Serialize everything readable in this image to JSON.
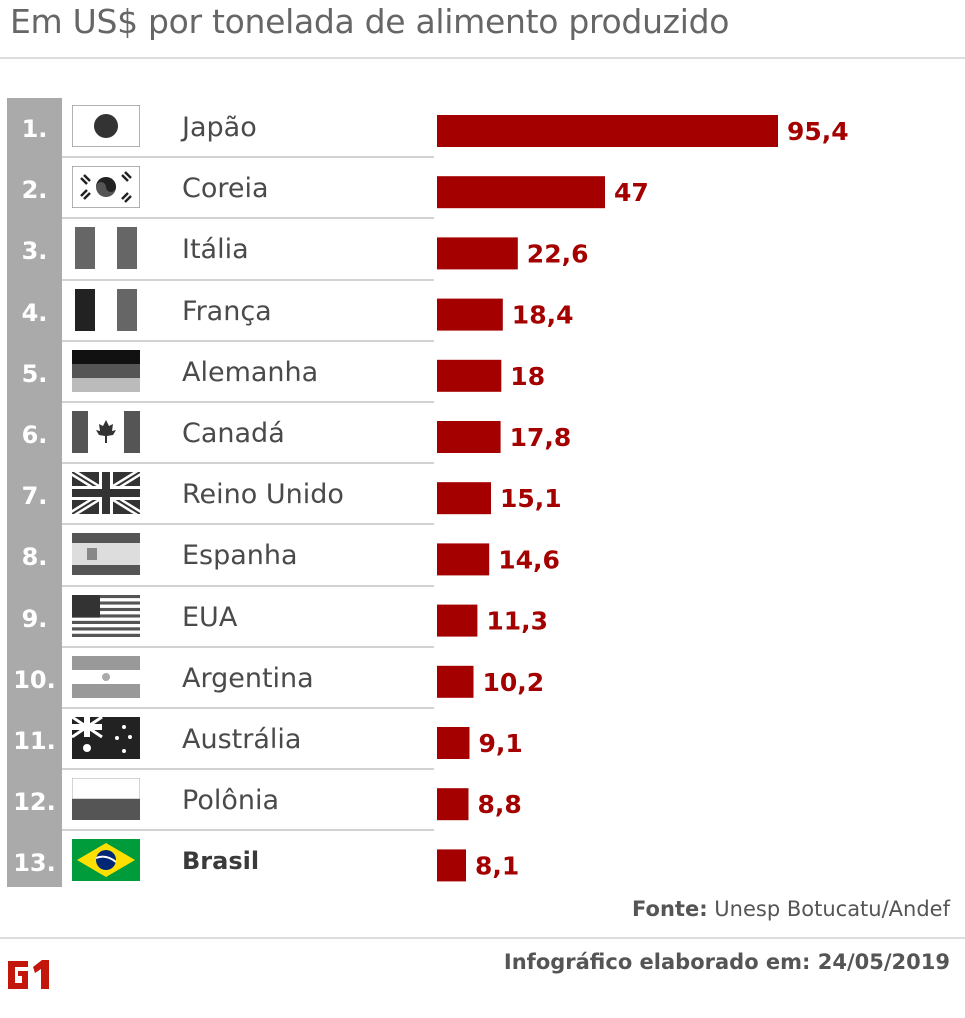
{
  "title": "Em US$ por tonelada de alimento produzido",
  "source_label": "Fonte:",
  "source_text": "Unesp Botucatu/Andef",
  "credit": "Infográfico elaborado em: 24/05/2019",
  "logo": "G1",
  "colors": {
    "bar": "#a50000",
    "rank_bg": "#aaaaaa",
    "divider": "#d2d2d2"
  },
  "chart_data": {
    "type": "bar",
    "orientation": "horizontal",
    "title": "Em US$ por tonelada de alimento produzido",
    "xlabel": "",
    "ylabel": "",
    "grid": false,
    "rows": [
      {
        "rank": "1.",
        "country": "Japão",
        "value": 95.4,
        "label": "95,4",
        "flag": "japan-flag-icon"
      },
      {
        "rank": "2.",
        "country": "Coreia",
        "value": 47,
        "label": "47",
        "flag": "korea-flag-icon"
      },
      {
        "rank": "3.",
        "country": "Itália",
        "value": 22.6,
        "label": "22,6",
        "flag": "italy-flag-icon"
      },
      {
        "rank": "4.",
        "country": "França",
        "value": 18.4,
        "label": "18,4",
        "flag": "france-flag-icon"
      },
      {
        "rank": "5.",
        "country": "Alemanha",
        "value": 18,
        "label": "18",
        "flag": "germany-flag-icon"
      },
      {
        "rank": "6.",
        "country": "Canadá",
        "value": 17.8,
        "label": "17,8",
        "flag": "canada-flag-icon"
      },
      {
        "rank": "7.",
        "country": "Reino Unido",
        "value": 15.1,
        "label": "15,1",
        "flag": "uk-flag-icon"
      },
      {
        "rank": "8.",
        "country": "Espanha",
        "value": 14.6,
        "label": "14,6",
        "flag": "spain-flag-icon"
      },
      {
        "rank": "9.",
        "country": "EUA",
        "value": 11.3,
        "label": "11,3",
        "flag": "usa-flag-icon"
      },
      {
        "rank": "10.",
        "country": "Argentina",
        "value": 10.2,
        "label": "10,2",
        "flag": "argentina-flag-icon"
      },
      {
        "rank": "11.",
        "country": "Austrália",
        "value": 9.1,
        "label": "9,1",
        "flag": "australia-flag-icon"
      },
      {
        "rank": "12.",
        "country": "Polônia",
        "value": 8.8,
        "label": "8,8",
        "flag": "poland-flag-icon"
      },
      {
        "rank": "13.",
        "country": "Brasil",
        "value": 8.1,
        "label": "8,1",
        "flag": "brazil-flag-icon",
        "highlight": true
      }
    ]
  }
}
